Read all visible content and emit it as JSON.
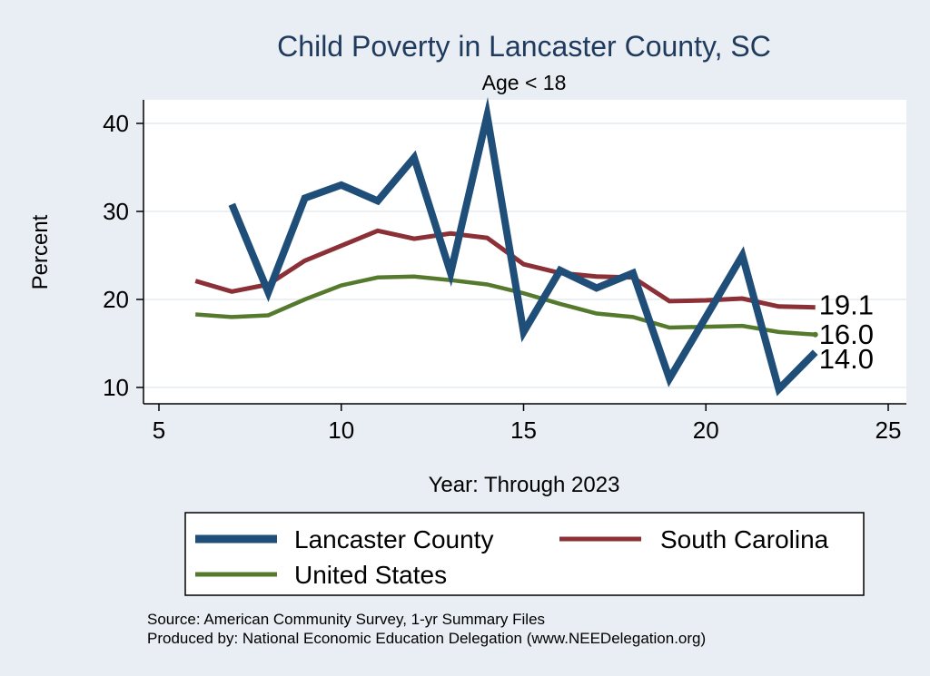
{
  "chart_data": {
    "type": "line",
    "title": "Child Poverty in Lancaster County, SC",
    "subtitle": "Age < 18",
    "xlabel": "Year: Through 2023",
    "ylabel": "Percent",
    "xlim": [
      5,
      25
    ],
    "ylim": [
      8.5,
      43
    ],
    "xticks": [
      5,
      10,
      15,
      20,
      25
    ],
    "yticks": [
      10,
      20,
      30,
      40
    ],
    "grid": true,
    "legend_position": "bottom",
    "series": [
      {
        "name": "Lancaster County",
        "color": "#1f4e79",
        "x": [
          7,
          8,
          9,
          10,
          11,
          12,
          13,
          14,
          15,
          16,
          17,
          18,
          19,
          20,
          21,
          22,
          23
        ],
        "values": [
          30.8,
          20.8,
          31.5,
          33.0,
          31.2,
          36.1,
          23.0,
          40.9,
          16.3,
          23.3,
          21.3,
          23.0,
          11.0,
          18.0,
          25.0,
          9.8,
          14.0
        ],
        "end_label": "14.0"
      },
      {
        "name": "South Carolina",
        "color": "#8b3036",
        "x": [
          6,
          7,
          8,
          9,
          10,
          11,
          12,
          13,
          14,
          15,
          16,
          17,
          18,
          19,
          20,
          21,
          22,
          23
        ],
        "values": [
          22.1,
          20.9,
          21.7,
          24.4,
          26.1,
          27.8,
          26.9,
          27.5,
          27.0,
          24.0,
          23.0,
          22.6,
          22.5,
          19.8,
          19.9,
          20.1,
          19.2,
          19.1
        ],
        "end_label": "19.1"
      },
      {
        "name": "United States",
        "color": "#557a2d",
        "x": [
          6,
          7,
          8,
          9,
          10,
          11,
          12,
          13,
          14,
          15,
          16,
          17,
          18,
          19,
          20,
          21,
          22,
          23
        ],
        "values": [
          18.3,
          18.0,
          18.2,
          20.0,
          21.6,
          22.5,
          22.6,
          22.2,
          21.7,
          20.7,
          19.5,
          18.4,
          18.0,
          16.8,
          16.9,
          17.0,
          16.3,
          16.0
        ],
        "end_label": "16.0"
      }
    ]
  },
  "notes": {
    "source": "Source: American Community Survey, 1-yr Summary Files",
    "produced_by": "Produced by: National Economic Education Delegation (www.NEEDelegation.org)"
  }
}
